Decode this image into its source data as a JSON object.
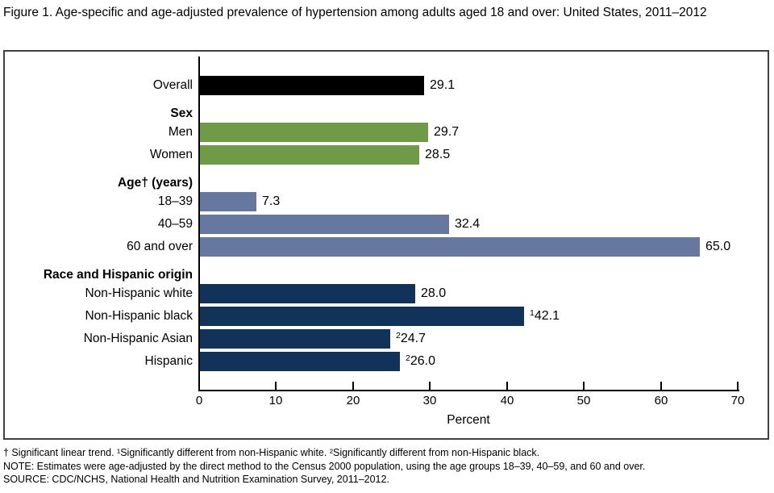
{
  "page": {
    "title": "Figure 1. Age-specific and age-adjusted prevalence of hypertension among adults aged 18 and over: United States, 2011–2012"
  },
  "chart_data": {
    "type": "bar",
    "orientation": "horizontal",
    "title": "Age-specific and age-adjusted prevalence of hypertension among adults aged 18 and over: United States, 2011–2012",
    "xlabel": "Percent",
    "ylabel": "",
    "xlim": [
      0,
      70
    ],
    "xticks": [
      0,
      10,
      20,
      30,
      40,
      50,
      60,
      70
    ],
    "grid": false,
    "legend": "none",
    "colors": {
      "overall": "#000000",
      "sex": "#6f9b47",
      "age": "#66789f",
      "race": "#123359"
    },
    "rows": [
      {
        "type": "bar",
        "label": "Overall",
        "value": 29.1,
        "value_text": "29.1",
        "value_sup": "",
        "palette": "overall"
      },
      {
        "type": "header",
        "label": "Sex"
      },
      {
        "type": "bar",
        "label": "Men",
        "value": 29.7,
        "value_text": "29.7",
        "value_sup": "",
        "palette": "sex"
      },
      {
        "type": "bar",
        "label": "Women",
        "value": 28.5,
        "value_text": "28.5",
        "value_sup": "",
        "palette": "sex"
      },
      {
        "type": "header",
        "label": "Age† (years)"
      },
      {
        "type": "bar",
        "label": "18–39",
        "value": 7.3,
        "value_text": "7.3",
        "value_sup": "",
        "palette": "age"
      },
      {
        "type": "bar",
        "label": "40–59",
        "value": 32.4,
        "value_text": "32.4",
        "value_sup": "",
        "palette": "age"
      },
      {
        "type": "bar",
        "label": "60 and over",
        "value": 65.0,
        "value_text": "65.0",
        "value_sup": "",
        "palette": "age"
      },
      {
        "type": "header",
        "label": "Race and Hispanic origin"
      },
      {
        "type": "bar",
        "label": "Non-Hispanic white",
        "value": 28.0,
        "value_text": "28.0",
        "value_sup": "",
        "palette": "race"
      },
      {
        "type": "bar",
        "label": "Non-Hispanic black",
        "value": 42.1,
        "value_text": "42.1",
        "value_sup": "1",
        "palette": "race"
      },
      {
        "type": "bar",
        "label": "Non-Hispanic Asian",
        "value": 24.7,
        "value_text": "24.7",
        "value_sup": "2",
        "palette": "race"
      },
      {
        "type": "bar",
        "label": "Hispanic",
        "value": 26.0,
        "value_text": "26.0",
        "value_sup": "2",
        "palette": "race"
      }
    ]
  },
  "footnotes": {
    "symbols": "† Significant linear trend. ¹Significantly different from non-Hispanic white. ²Significantly different from non-Hispanic black.",
    "note": "NOTE: Estimates were age-adjusted by the direct method to the Census 2000 population, using the age groups 18–39, 40–59, and 60 and over.",
    "source": "SOURCE: CDC/NCHS, National Health and Nutrition Examination Survey, 2011–2012."
  }
}
